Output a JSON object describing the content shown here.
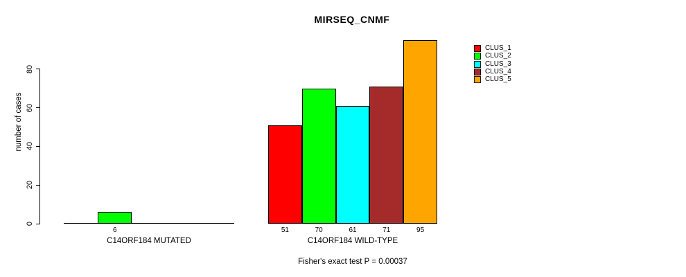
{
  "chart_data": {
    "type": "bar",
    "title": "MIRSEQ_CNMF",
    "xlabel": "",
    "ylabel": "number of cases",
    "ylim": [
      0,
      95
    ],
    "yticks": [
      0,
      20,
      40,
      60,
      80
    ],
    "grid": false,
    "legend_position": "top-right",
    "categories": [
      "CLUS_1",
      "CLUS_2",
      "CLUS_3",
      "CLUS_4",
      "CLUS_5"
    ],
    "legend": [
      {
        "name": "CLUS_1",
        "color": "#FF0000"
      },
      {
        "name": "CLUS_2",
        "color": "#00FF00"
      },
      {
        "name": "CLUS_3",
        "color": "#00FFFF"
      },
      {
        "name": "CLUS_4",
        "color": "#A52A2A"
      },
      {
        "name": "CLUS_5",
        "color": "#FFA500"
      }
    ],
    "groups": [
      {
        "label": "C14ORF184 MUTATED",
        "values": [
          0,
          6,
          0,
          0,
          0
        ],
        "value_labels": [
          "",
          "6",
          "",
          "",
          ""
        ]
      },
      {
        "label": "C14ORF184 WILD-TYPE",
        "values": [
          51,
          70,
          61,
          71,
          95
        ],
        "value_labels": [
          "51",
          "70",
          "61",
          "71",
          "95"
        ]
      }
    ],
    "annotation": "Fisher's exact test P = 0.00037"
  }
}
